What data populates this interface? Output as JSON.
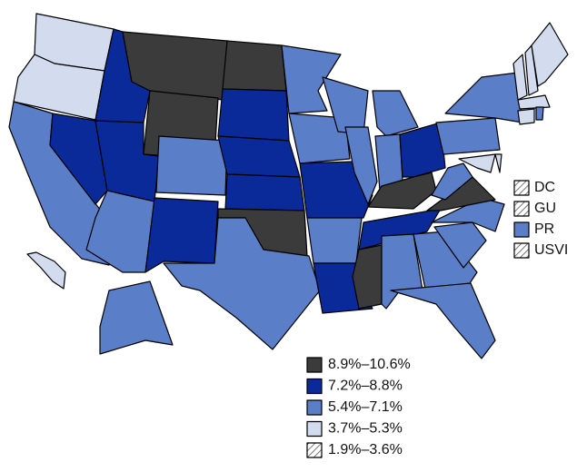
{
  "legend": {
    "items": [
      {
        "label": "8.9%–10.6%",
        "color": "#3b3b3b"
      },
      {
        "label": "7.2%–8.8%",
        "color": "#0a2a9a"
      },
      {
        "label": "5.4%–7.1%",
        "color": "#5a7ec8"
      },
      {
        "label": "3.7%–5.3%",
        "color": "#d3dbef"
      },
      {
        "label": "1.9%–3.6%",
        "color": "#ffffff",
        "hatched": true
      }
    ]
  },
  "territories": [
    {
      "label": "DC",
      "bin": 4
    },
    {
      "label": "GU",
      "bin": 4
    },
    {
      "label": "PR",
      "bin": 2
    },
    {
      "label": "USVI",
      "bin": 4
    }
  ],
  "state_bins": [
    3,
    3,
    2,
    1,
    1,
    0,
    0,
    1,
    2,
    2,
    1,
    0,
    1,
    1,
    1,
    0,
    2,
    2,
    2,
    1,
    2,
    1,
    2,
    2,
    2,
    2,
    1,
    0,
    1,
    0,
    2,
    2,
    2,
    2,
    2,
    0,
    2,
    2,
    2,
    3,
    3,
    3,
    3,
    3,
    3,
    3,
    2,
    2,
    3
  ]
}
